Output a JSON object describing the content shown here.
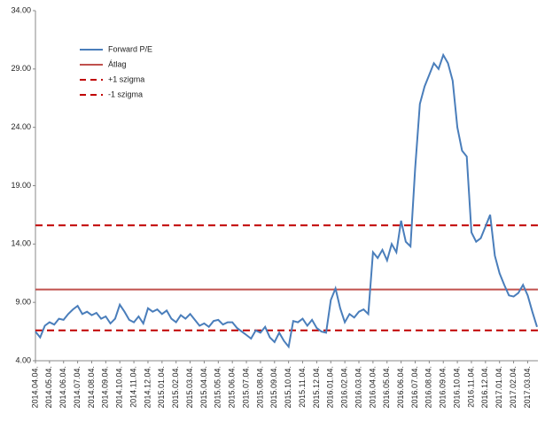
{
  "chart_data": {
    "type": "line",
    "categories": [
      "2014.04.04.",
      null,
      null,
      "2014.05.04.",
      null,
      null,
      "2014.06.04.",
      null,
      null,
      "2014.07.04.",
      null,
      null,
      "2014.08.04.",
      null,
      null,
      "2014.09.04.",
      null,
      null,
      "2014.10.04.",
      null,
      null,
      "2014.11.04.",
      null,
      null,
      "2014.12.04.",
      null,
      null,
      "2015.01.04.",
      null,
      null,
      "2015.02.04.",
      null,
      null,
      "2015.03.04.",
      null,
      null,
      "2015.04.04.",
      null,
      null,
      "2015.05.04.",
      null,
      null,
      "2015.06.04.",
      null,
      null,
      "2015.07.04.",
      null,
      null,
      "2015.08.04.",
      null,
      null,
      "2015.09.04.",
      null,
      null,
      "2015.10.04.",
      null,
      null,
      "2015.11.04.",
      null,
      null,
      "2015.12.04.",
      null,
      null,
      "2016.01.04.",
      null,
      null,
      "2016.02.04.",
      null,
      null,
      "2016.03.04.",
      null,
      null,
      "2016.04.04.",
      null,
      null,
      "2016.05.04.",
      null,
      null,
      "2016.06.04.",
      null,
      null,
      "2016.07.04.",
      null,
      null,
      "2016.08.04.",
      null,
      null,
      "2016.09.04.",
      null,
      null,
      "2016.10.04.",
      null,
      null,
      "2016.11.04.",
      null,
      null,
      "2016.12.04.",
      null,
      null,
      "2017.01.04.",
      null,
      null,
      "2017.02.04.",
      null,
      null,
      "2017.03.04.",
      null,
      null
    ],
    "series": [
      {
        "name": "Forward P/E",
        "color": "#4a7ebb",
        "values": [
          6.5,
          6.0,
          7.0,
          7.3,
          7.1,
          7.6,
          7.5,
          8.0,
          8.4,
          8.7,
          8.0,
          8.2,
          7.9,
          8.1,
          7.6,
          7.8,
          7.2,
          7.6,
          8.8,
          8.2,
          7.5,
          7.3,
          7.8,
          7.2,
          8.5,
          8.2,
          8.4,
          8.0,
          8.3,
          7.6,
          7.3,
          7.9,
          7.6,
          8.0,
          7.5,
          7.0,
          7.2,
          6.9,
          7.4,
          7.5,
          7.1,
          7.3,
          7.3,
          6.8,
          6.5,
          6.2,
          5.9,
          6.6,
          6.4,
          6.9,
          6.0,
          5.6,
          6.4,
          5.7,
          5.2,
          7.4,
          7.3,
          7.6,
          7.0,
          7.5,
          6.8,
          6.5,
          6.4,
          9.2,
          10.2,
          8.5,
          7.3,
          8.0,
          7.7,
          8.2,
          8.4,
          8.0,
          13.3,
          12.8,
          13.5,
          12.6,
          14.0,
          13.3,
          16.0,
          14.2,
          13.8,
          20.5,
          26.0,
          27.5,
          28.5,
          29.5,
          29.0,
          30.2,
          29.5,
          28.0,
          24.0,
          22.0,
          21.5,
          15.0,
          14.2,
          14.5,
          15.5,
          16.5,
          13.0,
          11.5,
          10.5,
          9.6,
          9.5,
          9.8,
          10.5,
          9.6,
          8.2,
          6.9
        ]
      }
    ],
    "hlines": [
      {
        "name": "Átlag",
        "value": 10.1,
        "color": "#c0504d",
        "dashed": false
      },
      {
        "name": "+1 szigma",
        "value": 15.6,
        "color": "#c00000",
        "dashed": true
      },
      {
        "name": "-1 szigma",
        "value": 6.6,
        "color": "#c00000",
        "dashed": true
      }
    ],
    "ylim": [
      4,
      34
    ],
    "yticks": [
      {
        "value": 4,
        "label": "4.00"
      },
      {
        "value": 9,
        "label": "9.00"
      },
      {
        "value": 14,
        "label": "14.00"
      },
      {
        "value": 19,
        "label": "19.00"
      },
      {
        "value": 24,
        "label": "24.00"
      },
      {
        "value": 29,
        "label": "29.00"
      },
      {
        "value": 34,
        "label": "34.00"
      }
    ]
  }
}
